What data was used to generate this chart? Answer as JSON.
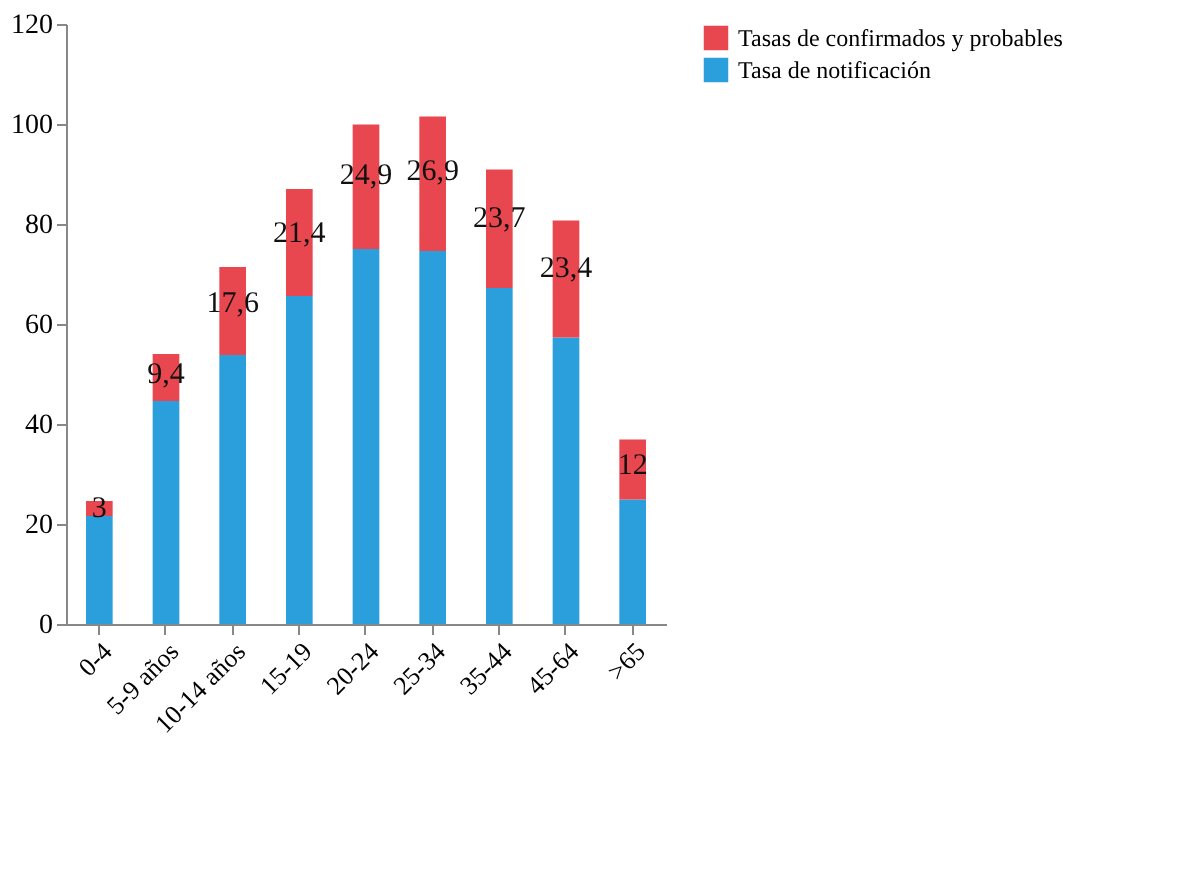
{
  "chart_data": {
    "type": "bar",
    "stacked": true,
    "categories": [
      "0-4",
      "5-9 años",
      "10-14 años",
      "15-19",
      "20-24",
      "25-34",
      "35-44",
      "45-64",
      ">65"
    ],
    "series": [
      {
        "name": "Tasa de notificación",
        "color": "#2b9fdc",
        "values": [
          21.6,
          44.6,
          53.8,
          65.6,
          75.0,
          74.6,
          67.2,
          57.3,
          24.9
        ]
      },
      {
        "name": "Tasas de confirmados y probables",
        "color": "#e8474f",
        "values": [
          3,
          9.4,
          17.6,
          21.4,
          24.9,
          26.9,
          23.7,
          23.4,
          12
        ],
        "value_labels": [
          "3",
          "9,4",
          "17,6",
          "21,4",
          "24,9",
          "26,9",
          "23,7",
          "23,4",
          "12"
        ]
      }
    ],
    "ylim": [
      0,
      120
    ],
    "yticks": [
      0,
      20,
      40,
      60,
      80,
      100,
      120
    ],
    "grid": false,
    "legend": "right"
  }
}
